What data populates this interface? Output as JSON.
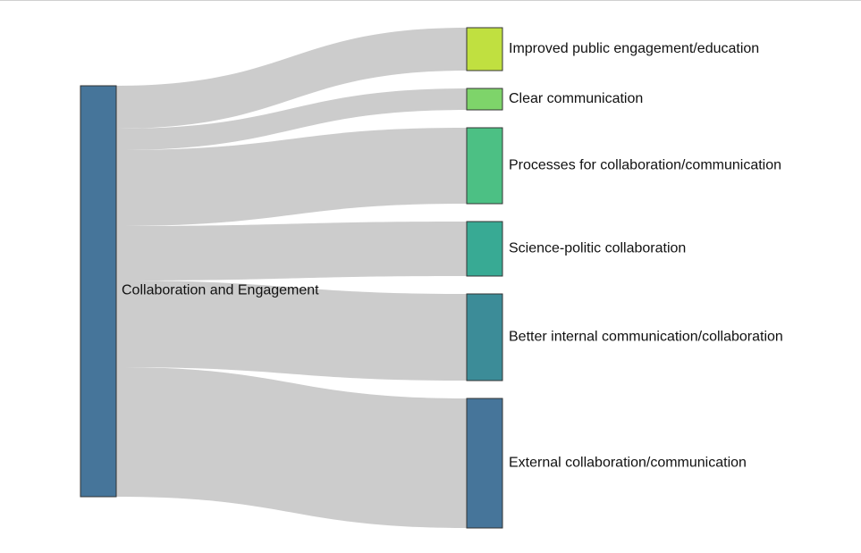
{
  "chart_data": {
    "type": "sankey",
    "title": "",
    "link_color": "#cccccc",
    "node_stroke": "#333333",
    "source": {
      "name": "Collaboration and Engagement",
      "color": "#46759a"
    },
    "targets": [
      {
        "name": "Improved public engagement/education",
        "value": 48,
        "color": "#c0e040"
      },
      {
        "name": "Clear communication",
        "value": 24,
        "color": "#7ed46a"
      },
      {
        "name": "Processes for collaboration/communication",
        "value": 85,
        "color": "#4cc084"
      },
      {
        "name": "Science-politic collaboration",
        "value": 61,
        "color": "#38aa94"
      },
      {
        "name": "Better internal communication/collaboration",
        "value": 97,
        "color": "#3c8c98"
      },
      {
        "name": "External collaboration/communication",
        "value": 145,
        "color": "#46759a"
      }
    ]
  }
}
